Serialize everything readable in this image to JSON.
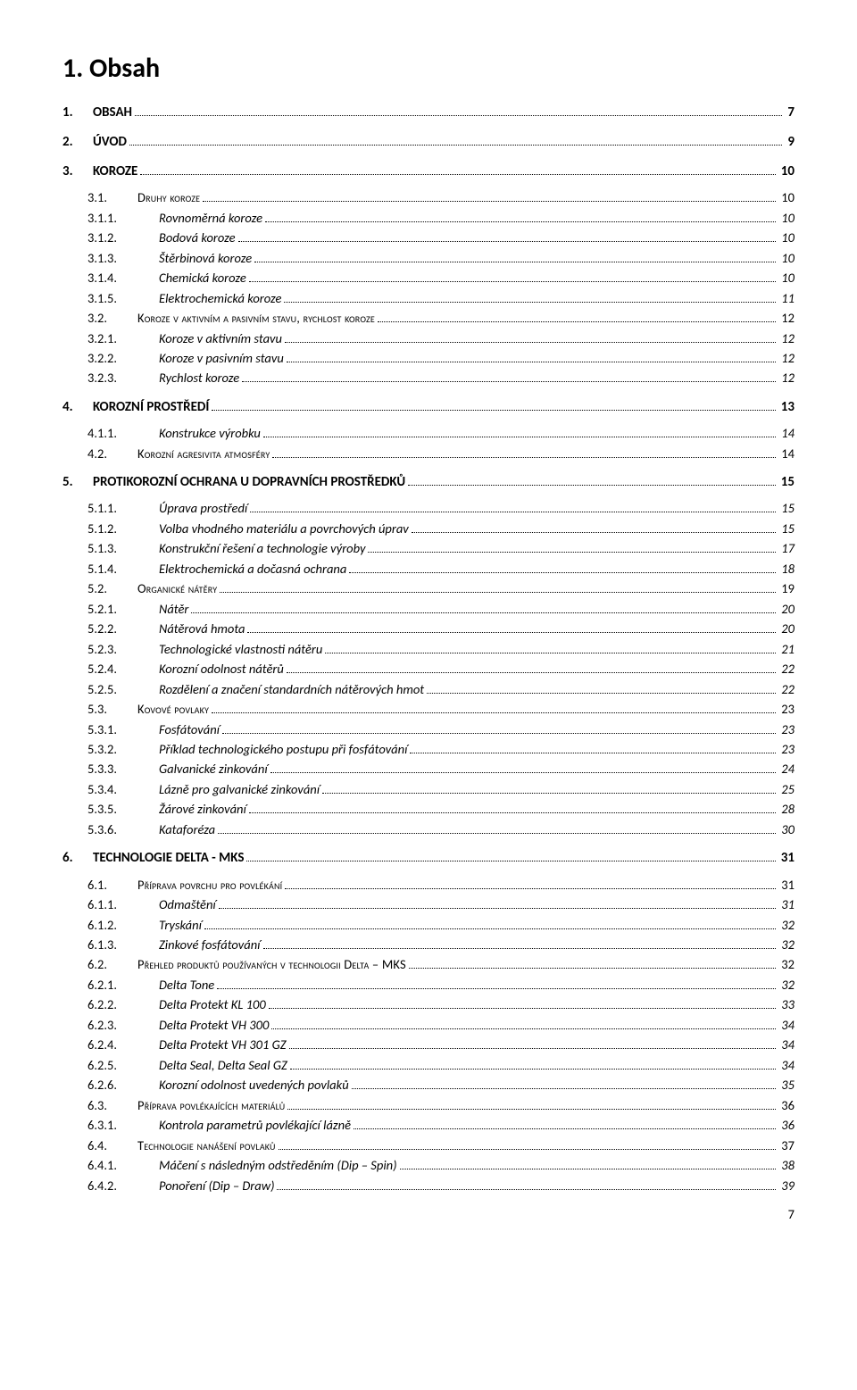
{
  "title": "1. Obsah",
  "footer_page": "7",
  "entries": [
    {
      "lvl": 1,
      "num": "1.",
      "label": "OBSAH",
      "page": "7",
      "caps": false
    },
    {
      "lvl": 1,
      "num": "2.",
      "label": "ÚVOD",
      "page": "9",
      "caps": false
    },
    {
      "lvl": 1,
      "num": "3.",
      "label": "KOROZE",
      "page": "10",
      "caps": false
    },
    {
      "lvl": 2,
      "num": "3.1.",
      "label": "Druhy koroze",
      "page": "10",
      "caps": true
    },
    {
      "lvl": 3,
      "num": "3.1.1.",
      "label": "Rovnoměrná koroze",
      "page": "10",
      "caps": false
    },
    {
      "lvl": 3,
      "num": "3.1.2.",
      "label": "Bodová koroze",
      "page": "10",
      "caps": false
    },
    {
      "lvl": 3,
      "num": "3.1.3.",
      "label": "Štěrbinová koroze",
      "page": "10",
      "caps": false
    },
    {
      "lvl": 3,
      "num": "3.1.4.",
      "label": "Chemická koroze",
      "page": "10",
      "caps": false
    },
    {
      "lvl": 3,
      "num": "3.1.5.",
      "label": "Elektrochemická koroze",
      "page": "11",
      "caps": false
    },
    {
      "lvl": 2,
      "num": "3.2.",
      "label": "Koroze v aktivním a pasivním stavu, rychlost koroze",
      "page": "12",
      "caps": true
    },
    {
      "lvl": 3,
      "num": "3.2.1.",
      "label": "Koroze v aktivním stavu",
      "page": "12",
      "caps": false
    },
    {
      "lvl": 3,
      "num": "3.2.2.",
      "label": "Koroze v pasivním stavu",
      "page": "12",
      "caps": false
    },
    {
      "lvl": 3,
      "num": "3.2.3.",
      "label": "Rychlost koroze",
      "page": "12",
      "caps": false
    },
    {
      "lvl": 1,
      "num": "4.",
      "label": "KOROZNÍ PROSTŘEDÍ",
      "page": "13",
      "caps": false
    },
    {
      "lvl": 3,
      "num": "4.1.1.",
      "label": "Konstrukce výrobku",
      "page": "14",
      "caps": false
    },
    {
      "lvl": 2,
      "num": "4.2.",
      "label": "Korozní agresivita atmosféry",
      "page": "14",
      "caps": true
    },
    {
      "lvl": 1,
      "num": "5.",
      "label": "PROTIKOROZNÍ OCHRANA U DOPRAVNÍCH PROSTŘEDKŮ",
      "page": "15",
      "caps": false
    },
    {
      "lvl": 3,
      "num": "5.1.1.",
      "label": "Úprava prostředí",
      "page": "15",
      "caps": false
    },
    {
      "lvl": 3,
      "num": "5.1.2.",
      "label": "Volba vhodného materiálu a povrchových úprav",
      "page": "15",
      "caps": false
    },
    {
      "lvl": 3,
      "num": "5.1.3.",
      "label": "Konstrukční řešení a technologie výroby",
      "page": "17",
      "caps": false
    },
    {
      "lvl": 3,
      "num": "5.1.4.",
      "label": "Elektrochemická a dočasná ochrana",
      "page": "18",
      "caps": false
    },
    {
      "lvl": 2,
      "num": "5.2.",
      "label": "Organické nátěry",
      "page": "19",
      "caps": true
    },
    {
      "lvl": 3,
      "num": "5.2.1.",
      "label": "Nátěr",
      "page": "20",
      "caps": false
    },
    {
      "lvl": 3,
      "num": "5.2.2.",
      "label": "Nátěrová hmota",
      "page": "20",
      "caps": false
    },
    {
      "lvl": 3,
      "num": "5.2.3.",
      "label": "Technologické vlastnosti nátěru",
      "page": "21",
      "caps": false
    },
    {
      "lvl": 3,
      "num": "5.2.4.",
      "label": "Korozní odolnost nátěrů",
      "page": "22",
      "caps": false
    },
    {
      "lvl": 3,
      "num": "5.2.5.",
      "label": "Rozdělení a značení standardních nátěrových hmot",
      "page": "22",
      "caps": false
    },
    {
      "lvl": 2,
      "num": "5.3.",
      "label": "Kovové povlaky",
      "page": "23",
      "caps": true
    },
    {
      "lvl": 3,
      "num": "5.3.1.",
      "label": "Fosfátování",
      "page": "23",
      "caps": false
    },
    {
      "lvl": 3,
      "num": "5.3.2.",
      "label": "Příklad technologického postupu při fosfátování",
      "page": "23",
      "caps": false
    },
    {
      "lvl": 3,
      "num": "5.3.3.",
      "label": "Galvanické zinkování",
      "page": "24",
      "caps": false
    },
    {
      "lvl": 3,
      "num": "5.3.4.",
      "label": "Lázně pro galvanické zinkování",
      "page": "25",
      "caps": false
    },
    {
      "lvl": 3,
      "num": "5.3.5.",
      "label": "Žárové zinkování",
      "page": "28",
      "caps": false
    },
    {
      "lvl": 3,
      "num": "5.3.6.",
      "label": "Kataforéza",
      "page": "30",
      "caps": false
    },
    {
      "lvl": 1,
      "num": "6.",
      "label": "TECHNOLOGIE DELTA - MKS",
      "page": "31",
      "caps": false
    },
    {
      "lvl": 2,
      "num": "6.1.",
      "label": "Příprava povrchu pro povlékání",
      "page": "31",
      "caps": true
    },
    {
      "lvl": 3,
      "num": "6.1.1.",
      "label": "Odmaštění",
      "page": "31",
      "caps": false
    },
    {
      "lvl": 3,
      "num": "6.1.2.",
      "label": "Tryskání",
      "page": "32",
      "caps": false
    },
    {
      "lvl": 3,
      "num": "6.1.3.",
      "label": "Zinkové fosfátování",
      "page": "32",
      "caps": false
    },
    {
      "lvl": 2,
      "num": "6.2.",
      "label": "Přehled produktů používaných v technologii Delta – MKS",
      "page": "32",
      "caps": true
    },
    {
      "lvl": 3,
      "num": "6.2.1.",
      "label": "Delta Tone",
      "page": "32",
      "caps": false
    },
    {
      "lvl": 3,
      "num": "6.2.2.",
      "label": "Delta Protekt KL 100",
      "page": "33",
      "caps": false
    },
    {
      "lvl": 3,
      "num": "6.2.3.",
      "label": "Delta Protekt VH 300",
      "page": "34",
      "caps": false
    },
    {
      "lvl": 3,
      "num": "6.2.4.",
      "label": "Delta Protekt VH 301 GZ",
      "page": "34",
      "caps": false
    },
    {
      "lvl": 3,
      "num": "6.2.5.",
      "label": "Delta Seal, Delta Seal GZ",
      "page": "34",
      "caps": false
    },
    {
      "lvl": 3,
      "num": "6.2.6.",
      "label": "Korozní odolnost uvedených povlaků",
      "page": "35",
      "caps": false
    },
    {
      "lvl": 2,
      "num": "6.3.",
      "label": "Příprava povlékajících materiálů",
      "page": "36",
      "caps": true
    },
    {
      "lvl": 3,
      "num": "6.3.1.",
      "label": "Kontrola parametrů povlékající lázně",
      "page": "36",
      "caps": false
    },
    {
      "lvl": 2,
      "num": "6.4.",
      "label": "Technologie nanášení povlaků",
      "page": "37",
      "caps": true
    },
    {
      "lvl": 3,
      "num": "6.4.1.",
      "label": "Máčení s následným odstředěním (Dip – Spin)",
      "page": "38",
      "caps": false
    },
    {
      "lvl": 3,
      "num": "6.4.2.",
      "label": "Ponoření (Dip – Draw)",
      "page": "39",
      "caps": false
    }
  ]
}
